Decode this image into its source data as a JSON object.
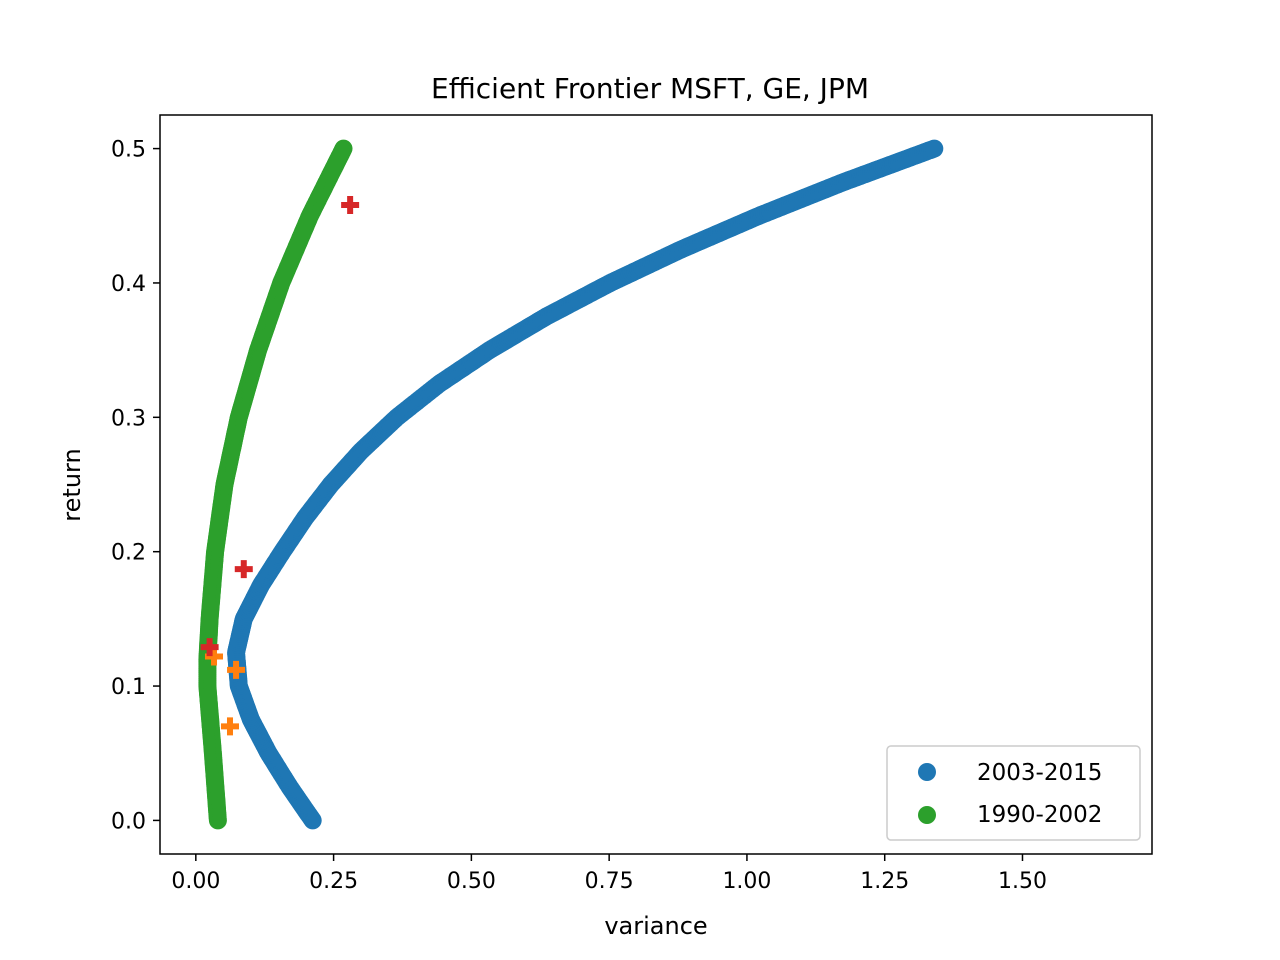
{
  "chart_data": {
    "type": "scatter",
    "title": "Efficient Frontier MSFT, GE, JPM",
    "xlabel": "variance",
    "ylabel": "return",
    "xlim": [
      -0.065,
      1.735
    ],
    "ylim": [
      -0.025,
      0.525
    ],
    "x_ticks": [
      0.0,
      0.25,
      0.5,
      0.75,
      1.0,
      1.25,
      1.5
    ],
    "x_tick_labels": [
      "0.00",
      "0.25",
      "0.50",
      "0.75",
      "1.00",
      "1.25",
      "1.50"
    ],
    "y_ticks": [
      0.0,
      0.1,
      0.2,
      0.3,
      0.4,
      0.5
    ],
    "y_tick_labels": [
      "0.0",
      "0.1",
      "0.2",
      "0.3",
      "0.4",
      "0.5"
    ],
    "grid": false,
    "legend_position": "lower right",
    "series": [
      {
        "name": "2003-2015",
        "color": "#1f77b4",
        "marker": "circle",
        "points": [
          [
            0.212,
            0.0
          ],
          [
            0.17,
            0.025
          ],
          [
            0.132,
            0.05
          ],
          [
            0.1,
            0.075
          ],
          [
            0.078,
            0.1
          ],
          [
            0.073,
            0.125
          ],
          [
            0.087,
            0.15
          ],
          [
            0.118,
            0.175
          ],
          [
            0.157,
            0.2
          ],
          [
            0.198,
            0.225
          ],
          [
            0.245,
            0.25
          ],
          [
            0.3,
            0.275
          ],
          [
            0.365,
            0.3
          ],
          [
            0.442,
            0.325
          ],
          [
            0.533,
            0.35
          ],
          [
            0.636,
            0.375
          ],
          [
            0.752,
            0.4
          ],
          [
            0.881,
            0.425
          ],
          [
            1.022,
            0.45
          ],
          [
            1.175,
            0.475
          ],
          [
            1.34,
            0.5
          ]
        ]
      },
      {
        "name": "1990-2002",
        "color": "#2ca02c",
        "marker": "circle",
        "points": [
          [
            0.04,
            0.0
          ],
          [
            0.031,
            0.05
          ],
          [
            0.021,
            0.1
          ],
          [
            0.021,
            0.12
          ],
          [
            0.025,
            0.15
          ],
          [
            0.035,
            0.2
          ],
          [
            0.052,
            0.25
          ],
          [
            0.078,
            0.3
          ],
          [
            0.113,
            0.35
          ],
          [
            0.155,
            0.4
          ],
          [
            0.207,
            0.45
          ],
          [
            0.268,
            0.5
          ]
        ]
      }
    ],
    "extra_markers": [
      {
        "color": "#ff7f0e",
        "marker": "plus",
        "points": [
          [
            0.062,
            0.07
          ],
          [
            0.073,
            0.112
          ],
          [
            0.033,
            0.122
          ]
        ]
      },
      {
        "color": "#d62728",
        "marker": "plus",
        "points": [
          [
            0.087,
            0.187
          ],
          [
            0.025,
            0.129
          ],
          [
            0.28,
            0.458
          ]
        ]
      }
    ]
  }
}
